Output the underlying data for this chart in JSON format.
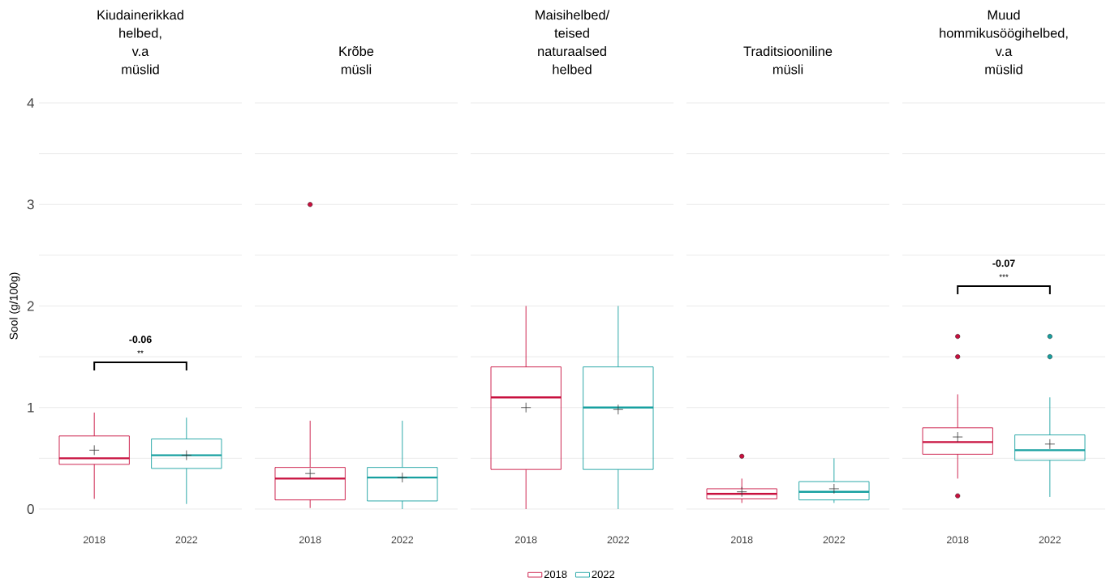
{
  "chart_data": [
    {
      "type": "box",
      "title": "Kiudainerikkad helbed, v.a müslid",
      "ylabel": "Sool (g/100g)",
      "categories": [
        "2018",
        "2022"
      ],
      "ylim": [
        0,
        4
      ],
      "yticks": [
        0,
        {
          "value": 0.5,
          "label": null
        },
        1,
        {
          "value": 1.5,
          "label": null
        },
        2,
        {
          "value": 2.5,
          "label": null
        },
        3,
        {
          "value": 3.5,
          "label": null
        },
        4
      ],
      "grid": "y",
      "series": [
        {
          "color": "#c8103e",
          "boxes": [
            {
              "low": 0.1,
              "q1": 0.44,
              "median": 0.5,
              "q3": 0.72,
              "high": 0.95,
              "mean": 0.58
            },
            null
          ]
        },
        {
          "color": "#17a0a0",
          "boxes": [
            null,
            {
              "low": 0.05,
              "q1": 0.4,
              "median": 0.53,
              "q3": 0.69,
              "high": 0.9,
              "mean": 0.53
            }
          ]
        }
      ],
      "annotations": [
        "-0.06",
        "**"
      ]
    },
    {
      "type": "box",
      "title": "Krõbe müsli",
      "categories": [
        "2018",
        "2022"
      ],
      "ylim": [
        0,
        4
      ],
      "yticks": [
        0,
        {
          "value": 0.5,
          "label": null
        },
        1,
        {
          "value": 1.5,
          "label": null
        },
        2,
        {
          "value": 2.5,
          "label": null
        },
        3,
        {
          "value": 3.5,
          "label": null
        },
        4
      ],
      "grid": "y",
      "tick_labels": "x",
      "series": [
        {
          "color": "#c8103e",
          "boxes": [
            {
              "low": 0.01,
              "q1": 0.09,
              "median": 0.3,
              "q3": 0.41,
              "high": 0.87,
              "mean": 0.35,
              "outliers": [
                3.0
              ]
            },
            null
          ]
        },
        {
          "color": "#17a0a0",
          "boxes": [
            null,
            {
              "low": 0.0,
              "q1": 0.08,
              "median": 0.31,
              "q3": 0.41,
              "high": 0.87,
              "mean": 0.31
            }
          ]
        }
      ]
    },
    {
      "type": "box",
      "title": "Maisihelbed/ teised naturaalsed helbed",
      "categories": [
        "2018",
        "2022"
      ],
      "ylim": [
        0,
        4
      ],
      "yticks": [
        0,
        {
          "value": 0.5,
          "label": null
        },
        1,
        {
          "value": 1.5,
          "label": null
        },
        2,
        {
          "value": 2.5,
          "label": null
        },
        3,
        {
          "value": 3.5,
          "label": null
        },
        4
      ],
      "grid": "y",
      "tick_labels": "x",
      "legend": "bottom",
      "series": [
        {
          "name": "2018",
          "color": "#c8103e",
          "boxes": [
            {
              "low": 0.0,
              "q1": 0.39,
              "median": 1.1,
              "q3": 1.4,
              "high": 2.0,
              "mean": 1.0
            },
            null
          ]
        },
        {
          "name": "2022",
          "color": "#17a0a0",
          "boxes": [
            null,
            {
              "low": 0.0,
              "q1": 0.39,
              "median": 1.0,
              "q3": 1.4,
              "high": 2.0,
              "mean": 0.98
            }
          ]
        }
      ]
    },
    {
      "type": "box",
      "title": "Traditsiooniline müsli",
      "categories": [
        "2018",
        "2022"
      ],
      "ylim": [
        0,
        4
      ],
      "yticks": [
        0,
        {
          "value": 0.5,
          "label": null
        },
        1,
        {
          "value": 1.5,
          "label": null
        },
        2,
        {
          "value": 2.5,
          "label": null
        },
        3,
        {
          "value": 3.5,
          "label": null
        },
        4
      ],
      "grid": "y",
      "tick_labels": "x",
      "series": [
        {
          "color": "#c8103e",
          "boxes": [
            {
              "low": 0.06,
              "q1": 0.1,
              "median": 0.15,
              "q3": 0.2,
              "high": 0.3,
              "mean": 0.17,
              "outliers": [
                0.52
              ]
            },
            null
          ]
        },
        {
          "color": "#17a0a0",
          "boxes": [
            null,
            {
              "low": 0.06,
              "q1": 0.09,
              "median": 0.17,
              "q3": 0.27,
              "high": 0.5,
              "mean": 0.2
            }
          ]
        }
      ]
    },
    {
      "type": "box",
      "title": "Muud hommikusöögihelbed, v.a müslid",
      "categories": [
        "2018",
        "2022"
      ],
      "ylim": [
        0,
        4
      ],
      "yticks": [
        0,
        {
          "value": 0.5,
          "label": null
        },
        1,
        {
          "value": 1.5,
          "label": null
        },
        2,
        {
          "value": 2.5,
          "label": null
        },
        3,
        {
          "value": 3.5,
          "label": null
        },
        4
      ],
      "grid": "y",
      "tick_labels": "x",
      "series": [
        {
          "color": "#c8103e",
          "boxes": [
            {
              "low": 0.3,
              "q1": 0.54,
              "median": 0.66,
              "q3": 0.8,
              "high": 1.13,
              "mean": 0.71,
              "outliers": [
                1.7,
                1.5,
                0.13
              ]
            },
            null
          ]
        },
        {
          "color": "#17a0a0",
          "boxes": [
            null,
            {
              "low": 0.12,
              "q1": 0.48,
              "median": 0.58,
              "q3": 0.73,
              "high": 1.1,
              "mean": 0.64,
              "outliers": [
                1.7,
                1.5
              ]
            }
          ]
        }
      ],
      "annotations": [
        "-0.07",
        "***"
      ]
    }
  ]
}
